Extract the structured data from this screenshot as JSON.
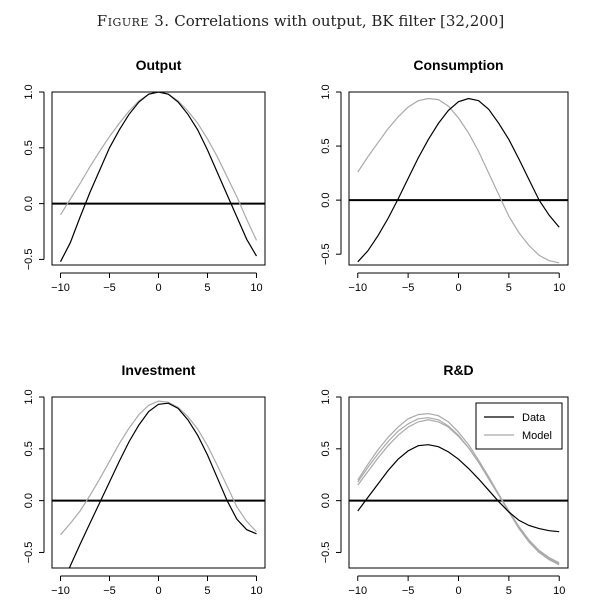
{
  "figure": {
    "title_prefix": "Figure 3.",
    "title_text": "Correlations with output, BK filter [32,200]"
  },
  "colors": {
    "data": "#000000",
    "model": "#aaaaaa",
    "zero_line": "#000000"
  },
  "chart_data": [
    {
      "type": "line",
      "title": "Output",
      "x": [
        -10,
        -9,
        -8,
        -7,
        -6,
        -5,
        -4,
        -3,
        -2,
        -1,
        0,
        1,
        2,
        3,
        4,
        5,
        6,
        7,
        8,
        9,
        10
      ],
      "xlim": [
        -10,
        10
      ],
      "ylim": [
        -0.55,
        1.0
      ],
      "xticks": [
        -10,
        -5,
        0,
        5,
        10
      ],
      "yticks": [
        -0.5,
        0.0,
        0.5,
        1.0
      ],
      "ytick_labels": [
        "-0.5",
        "0.0",
        "0.5",
        "1.0"
      ],
      "hline": 0,
      "series": [
        {
          "role": "data",
          "values": [
            -0.52,
            -0.35,
            -0.12,
            0.1,
            0.3,
            0.5,
            0.66,
            0.8,
            0.91,
            0.98,
            1.0,
            0.98,
            0.91,
            0.8,
            0.66,
            0.48,
            0.28,
            0.08,
            -0.12,
            -0.32,
            -0.47
          ]
        },
        {
          "role": "model",
          "values": [
            -0.1,
            0.04,
            0.18,
            0.33,
            0.47,
            0.6,
            0.72,
            0.83,
            0.92,
            0.98,
            1.0,
            0.98,
            0.92,
            0.83,
            0.72,
            0.58,
            0.42,
            0.24,
            0.06,
            -0.14,
            -0.33
          ]
        }
      ],
      "legend": null
    },
    {
      "type": "line",
      "title": "Consumption",
      "x": [
        -10,
        -9,
        -8,
        -7,
        -6,
        -5,
        -4,
        -3,
        -2,
        -1,
        0,
        1,
        2,
        3,
        4,
        5,
        6,
        7,
        8,
        9,
        10
      ],
      "xlim": [
        -10,
        10
      ],
      "ylim": [
        -0.6,
        1.0
      ],
      "xticks": [
        -10,
        -5,
        0,
        5,
        10
      ],
      "yticks": [
        -0.5,
        0.0,
        0.5,
        1.0
      ],
      "ytick_labels": [
        "-0.5",
        "0.0",
        "0.5",
        "1.0"
      ],
      "hline": 0,
      "series": [
        {
          "role": "data",
          "values": [
            -0.57,
            -0.47,
            -0.33,
            -0.17,
            0.01,
            0.2,
            0.39,
            0.56,
            0.71,
            0.83,
            0.91,
            0.94,
            0.92,
            0.84,
            0.71,
            0.56,
            0.38,
            0.19,
            0.0,
            -0.14,
            -0.25
          ]
        },
        {
          "role": "model",
          "values": [
            0.26,
            0.4,
            0.53,
            0.66,
            0.77,
            0.86,
            0.92,
            0.94,
            0.93,
            0.87,
            0.76,
            0.62,
            0.45,
            0.25,
            0.05,
            -0.15,
            -0.3,
            -0.42,
            -0.51,
            -0.56,
            -0.58
          ]
        }
      ],
      "legend": null
    },
    {
      "type": "line",
      "title": "Investment",
      "x": [
        -10,
        -9,
        -8,
        -7,
        -6,
        -5,
        -4,
        -3,
        -2,
        -1,
        0,
        1,
        2,
        3,
        4,
        5,
        6,
        7,
        8,
        9,
        10
      ],
      "xlim": [
        -10,
        10
      ],
      "ylim": [
        -0.65,
        1.0
      ],
      "xticks": [
        -10,
        -5,
        0,
        5,
        10
      ],
      "yticks": [
        -0.5,
        0.0,
        0.5,
        1.0
      ],
      "ytick_labels": [
        "-0.5",
        "0.0",
        "0.5",
        "1.0"
      ],
      "hline": 0,
      "series": [
        {
          "role": "data",
          "values": [
            -0.85,
            -0.63,
            -0.42,
            -0.22,
            -0.02,
            0.18,
            0.38,
            0.57,
            0.73,
            0.86,
            0.93,
            0.94,
            0.89,
            0.78,
            0.63,
            0.44,
            0.22,
            0.0,
            -0.18,
            -0.28,
            -0.32
          ]
        },
        {
          "role": "model",
          "values": [
            -0.33,
            -0.22,
            -0.1,
            0.05,
            0.21,
            0.38,
            0.55,
            0.7,
            0.83,
            0.92,
            0.96,
            0.95,
            0.9,
            0.81,
            0.69,
            0.53,
            0.34,
            0.14,
            -0.06,
            -0.2,
            -0.3
          ]
        }
      ],
      "legend": null
    },
    {
      "type": "line",
      "title": "R&D",
      "x": [
        -10,
        -9,
        -8,
        -7,
        -6,
        -5,
        -4,
        -3,
        -2,
        -1,
        0,
        1,
        2,
        3,
        4,
        5,
        6,
        7,
        8,
        9,
        10
      ],
      "xlim": [
        -10,
        10
      ],
      "ylim": [
        -0.65,
        1.0
      ],
      "xticks": [
        -10,
        -5,
        0,
        5,
        10
      ],
      "yticks": [
        -0.5,
        0.0,
        0.5,
        1.0
      ],
      "ytick_labels": [
        "-0.5",
        "0.0",
        "0.5",
        "1.0"
      ],
      "hline": 0,
      "series": [
        {
          "role": "data",
          "values": [
            -0.1,
            0.03,
            0.16,
            0.29,
            0.4,
            0.48,
            0.53,
            0.54,
            0.52,
            0.47,
            0.4,
            0.31,
            0.21,
            0.1,
            -0.01,
            -0.11,
            -0.19,
            -0.24,
            -0.27,
            -0.29,
            -0.3
          ]
        },
        {
          "role": "model",
          "values": [
            0.15,
            0.28,
            0.41,
            0.53,
            0.63,
            0.71,
            0.76,
            0.78,
            0.76,
            0.71,
            0.62,
            0.51,
            0.37,
            0.22,
            0.06,
            -0.1,
            -0.25,
            -0.38,
            -0.48,
            -0.55,
            -0.6
          ]
        },
        {
          "role": "model",
          "values": [
            0.18,
            0.32,
            0.45,
            0.57,
            0.67,
            0.74,
            0.79,
            0.8,
            0.78,
            0.72,
            0.63,
            0.51,
            0.37,
            0.21,
            0.05,
            -0.11,
            -0.26,
            -0.39,
            -0.49,
            -0.56,
            -0.61
          ]
        },
        {
          "role": "model",
          "values": [
            0.2,
            0.35,
            0.49,
            0.61,
            0.71,
            0.79,
            0.83,
            0.84,
            0.82,
            0.76,
            0.66,
            0.54,
            0.39,
            0.23,
            0.06,
            -0.11,
            -0.27,
            -0.4,
            -0.5,
            -0.57,
            -0.62
          ]
        }
      ],
      "legend": {
        "position": "top-right",
        "entries": [
          {
            "label": "Data",
            "role": "data"
          },
          {
            "label": "Model",
            "role": "model"
          }
        ]
      }
    }
  ]
}
